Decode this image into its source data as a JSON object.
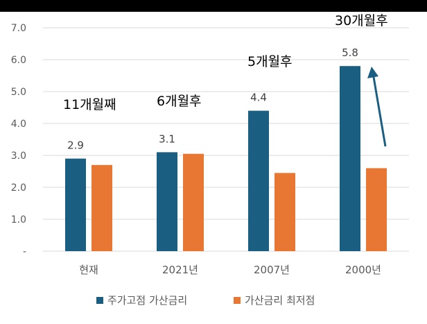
{
  "chart_data": {
    "type": "bar",
    "categories": [
      "현재",
      "2021년",
      "2007년",
      "2000년"
    ],
    "series": [
      {
        "name": "주가고점 가산금리",
        "color": "#1a5e82",
        "values": [
          2.9,
          3.1,
          4.4,
          5.8
        ],
        "data_labels": [
          "2.9",
          "3.1",
          "4.4",
          "5.8"
        ]
      },
      {
        "name": "가산금리 최저점",
        "color": "#e87733",
        "values": [
          2.7,
          3.05,
          2.45,
          2.6
        ]
      }
    ],
    "yticks": [
      "-",
      "1.0",
      "2.0",
      "3.0",
      "4.0",
      "5.0",
      "6.0",
      "7.0"
    ],
    "ylim": [
      0,
      7
    ],
    "grid": true,
    "legend_position": "bottom",
    "annotations": [
      "11개월째",
      "6개월후",
      "5개월후",
      "30개월후"
    ],
    "arrow_color": "#1a5e82"
  }
}
